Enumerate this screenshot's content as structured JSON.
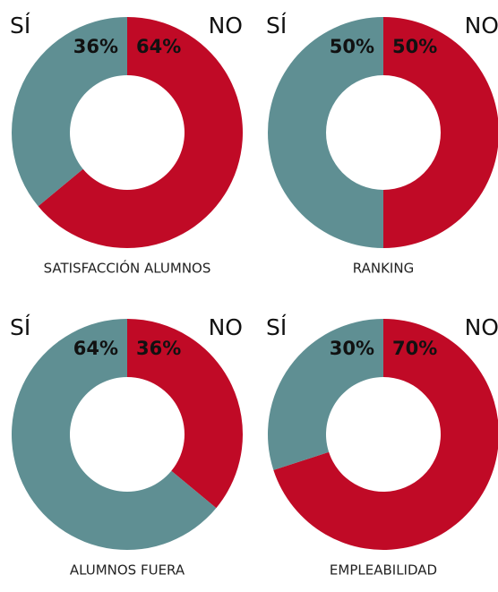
{
  "chart_data": [
    {
      "type": "pie",
      "title": "SATISFACCIÓN ALUMNOS",
      "categories": [
        "SÍ",
        "NO"
      ],
      "values": [
        36,
        64
      ],
      "value_labels": [
        "36%",
        "64%"
      ],
      "colors": [
        "#5f8f93",
        "#c00a26"
      ]
    },
    {
      "type": "pie",
      "title": "RANKING",
      "categories": [
        "SÍ",
        "NO"
      ],
      "values": [
        50,
        50
      ],
      "value_labels": [
        "50%",
        "50%"
      ],
      "colors": [
        "#5f8f93",
        "#c00a26"
      ]
    },
    {
      "type": "pie",
      "title": "ALUMNOS FUERA",
      "categories": [
        "SÍ",
        "NO"
      ],
      "values": [
        64,
        36
      ],
      "value_labels": [
        "64%",
        "36%"
      ],
      "colors": [
        "#5f8f93",
        "#c00a26"
      ]
    },
    {
      "type": "pie",
      "title": "EMPLEABILIDAD",
      "categories": [
        "SÍ",
        "NO"
      ],
      "values": [
        30,
        70
      ],
      "value_labels": [
        "30%",
        "70%"
      ],
      "colors": [
        "#5f8f93",
        "#c00a26"
      ]
    }
  ]
}
